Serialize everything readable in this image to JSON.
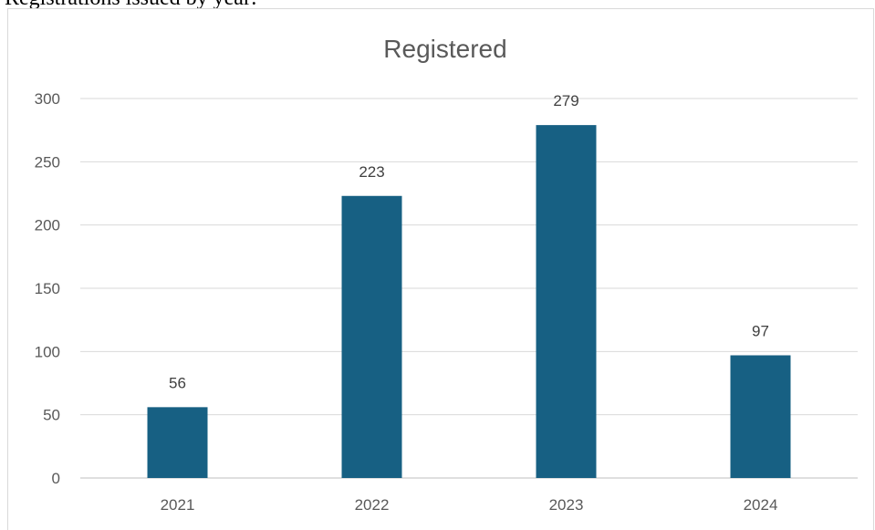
{
  "caption": "Registrations issued by year:",
  "chart_data": {
    "type": "bar",
    "title": "Registered",
    "categories": [
      "2021",
      "2022",
      "2023",
      "2024"
    ],
    "values": [
      56,
      223,
      279,
      97
    ],
    "data_labels": [
      "56",
      "223",
      "279",
      "97"
    ],
    "ylim": [
      0,
      300
    ],
    "yticks": [
      "0",
      "50",
      "100",
      "150",
      "200",
      "250",
      "300"
    ],
    "ytick_values": [
      0,
      50,
      100,
      150,
      200,
      250,
      300
    ],
    "grid": true,
    "legend": "none",
    "bar_color": "#176083"
  }
}
